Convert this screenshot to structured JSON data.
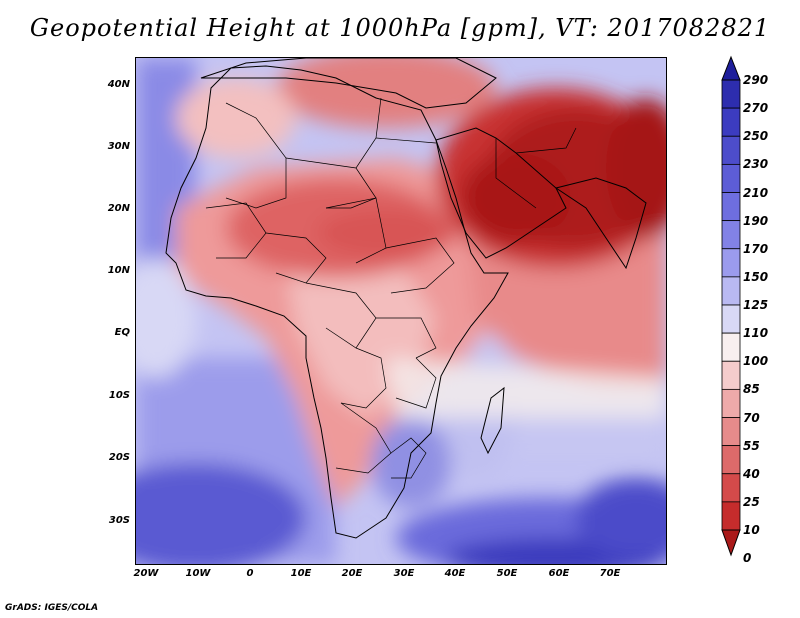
{
  "title": "Geopotential Height at 1000hPa [gpm], VT: 2017082821",
  "footer": "GrADS: IGES/COLA",
  "lat_labels": [
    "40N",
    "30N",
    "20N",
    "10N",
    "EQ",
    "10S",
    "20S",
    "30S"
  ],
  "lon_labels": [
    "20W",
    "10W",
    "0",
    "10E",
    "20E",
    "30E",
    "40E",
    "50E",
    "60E",
    "70E"
  ],
  "colorbar": {
    "labels": [
      "290",
      "270",
      "250",
      "230",
      "210",
      "190",
      "170",
      "150",
      "125",
      "110",
      "100",
      "85",
      "70",
      "55",
      "40",
      "25",
      "10",
      "0"
    ],
    "colors": [
      "#1e1e9b",
      "#2d2dae",
      "#3c3cc0",
      "#4d4dcb",
      "#5d5dd6",
      "#6e6edf",
      "#8282e6",
      "#9b9bed",
      "#b9b9f2",
      "#d8d8f6",
      "#f8efef",
      "#f5cccc",
      "#eeaaaa",
      "#e68b8b",
      "#dd6a6a",
      "#d44a4a",
      "#c52c2c",
      "#aa1a1a"
    ]
  },
  "field_colors": {
    "deep_red": "#a8191d",
    "red": "#c93a3c",
    "mid_red": "#de6b6b",
    "light_red": "#eea4a4",
    "pink": "#f6d0d0",
    "white": "#fbf3f3",
    "pale_blue": "#dadaf6",
    "light_blue": "#bcbcf1",
    "blue": "#9a9ae9",
    "mid_blue": "#7474df",
    "dark_blue": "#4f4fcc",
    "deep_blue": "#3333b8"
  }
}
